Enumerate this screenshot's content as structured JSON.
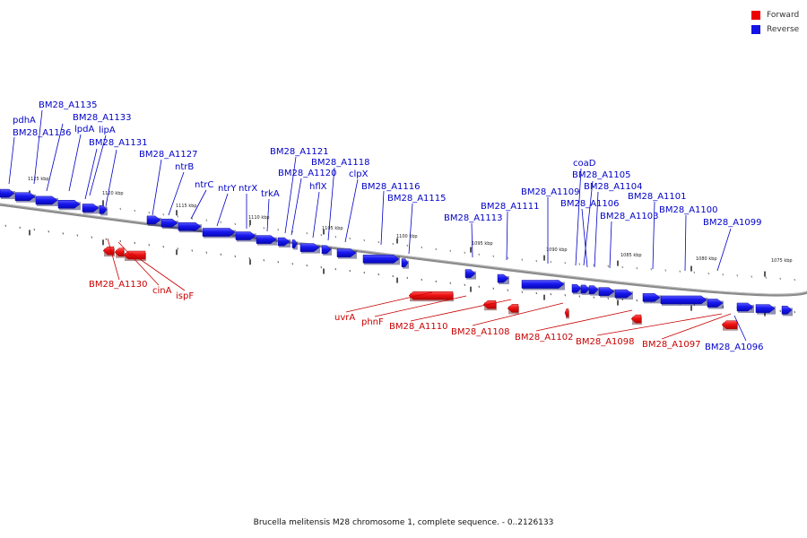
{
  "colors": {
    "forward": "#ee0000",
    "reverse": "#1414e6",
    "forward_label": "#c80000",
    "reverse_label": "#0000c8"
  },
  "legend": [
    {
      "label": "Forward",
      "color": "#ee0000"
    },
    {
      "label": "Reverse",
      "color": "#1414e6"
    }
  ],
  "caption": "Brucella melitensis M28 chromosome 1, complete sequence. - 0..2126133",
  "scale_labels": [
    "1125 kbp",
    "1120 kbp",
    "1115 kbp",
    "1110 kbp",
    "1105 kbp",
    "1100 kbp",
    "1095 kbp",
    "1090 kbp",
    "1085 kbp",
    "1080 kbp",
    "1075 kbp"
  ],
  "reverse_genes": [
    "pdhA",
    "BM28_A1136",
    "BM28_A1135",
    "lpdA",
    "BM28_A1133",
    "lipA",
    "BM28_A1131",
    "BM28_A1127",
    "ntrB",
    "ntrC",
    "ntrY",
    "ntrX",
    "trkA",
    "BM28_A1121",
    "BM28_A1120",
    "hflX",
    "BM28_A1118",
    "clpX",
    "BM28_A1116",
    "BM28_A1115",
    "BM28_A1113",
    "BM28_A1111",
    "BM28_A1109",
    "coaD",
    "BM28_A1105",
    "BM28_A1106",
    "BM28_A1104",
    "BM28_A1103",
    "BM28_A1101",
    "BM28_A1100",
    "BM28_A1099",
    "BM28_A1096"
  ],
  "forward_genes": [
    "BM28_A1130",
    "cinA",
    "ispF",
    "uvrA",
    "phnF",
    "BM28_A1110",
    "BM28_A1108",
    "BM28_A1102",
    "BM28_A1098",
    "BM28_A1097"
  ]
}
